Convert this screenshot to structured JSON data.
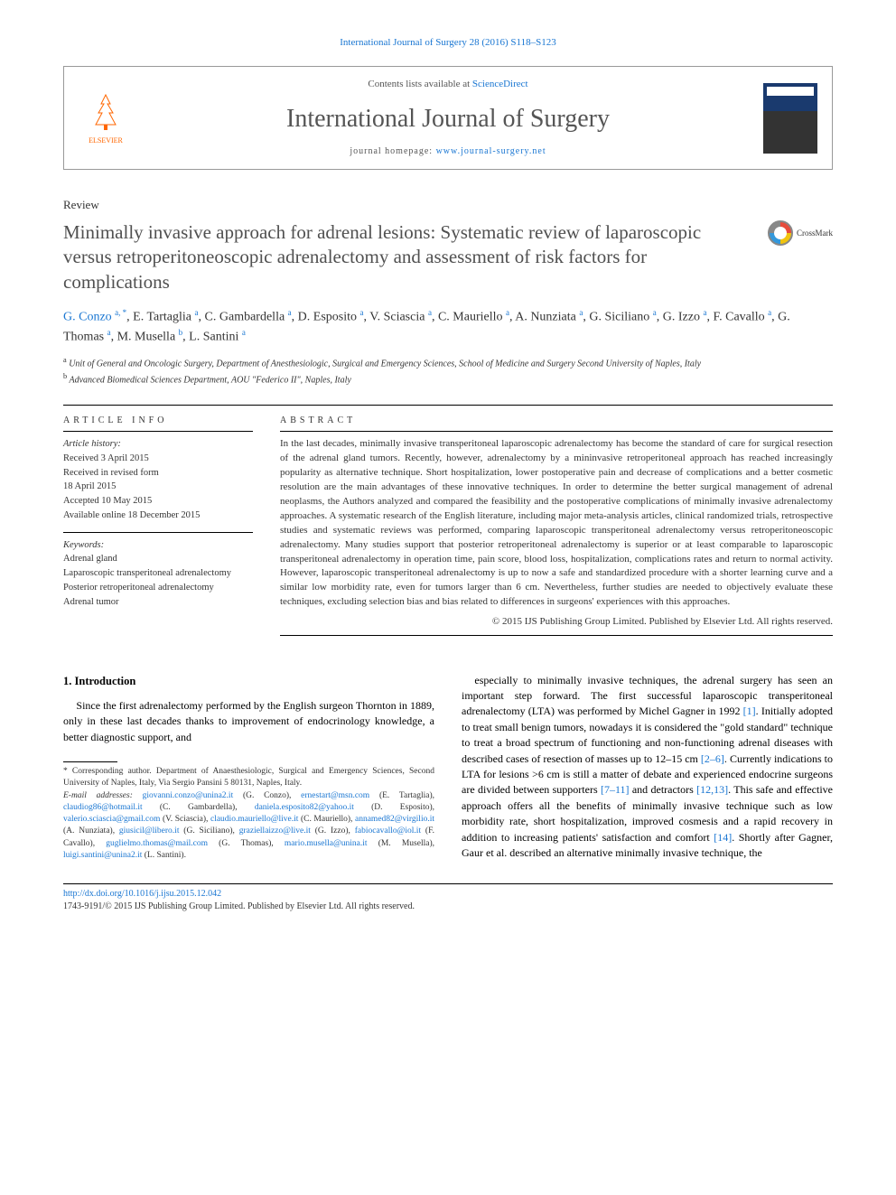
{
  "header": {
    "citation": "International Journal of Surgery 28 (2016) S118–S123",
    "contents_prefix": "Contents lists available at ",
    "contents_link": "ScienceDirect",
    "journal_title": "International Journal of Surgery",
    "homepage_prefix": "journal homepage: ",
    "homepage_link": "www.journal-surgery.net",
    "publisher": "ELSEVIER"
  },
  "article": {
    "type": "Review",
    "title": "Minimally invasive approach for adrenal lesions: Systematic review of laparoscopic versus retroperitoneoscopic adrenalectomy and assessment of risk factors for complications",
    "crossmark_label": "CrossMark"
  },
  "authors_html": "G. Conzo <sup>a, *</sup>, E. Tartaglia <sup>a</sup>, C. Gambardella <sup>a</sup>, D. Esposito <sup>a</sup>, V. Sciascia <sup>a</sup>, C. Mauriello <sup>a</sup>, A. Nunziata <sup>a</sup>, G. Siciliano <sup>a</sup>, G. Izzo <sup>a</sup>, F. Cavallo <sup>a</sup>, G. Thomas <sup>a</sup>, M. Musella <sup>b</sup>, L. Santini <sup>a</sup>",
  "affiliations": {
    "a": "Unit of General and Oncologic Surgery, Department of Anesthesiologic, Surgical and Emergency Sciences, School of Medicine and Surgery Second University of Naples, Italy",
    "b": "Advanced Biomedical Sciences Department, AOU \"Federico II\", Naples, Italy"
  },
  "info": {
    "heading": "ARTICLE INFO",
    "history_label": "Article history:",
    "history": [
      "Received 3 April 2015",
      "Received in revised form",
      "18 April 2015",
      "Accepted 10 May 2015",
      "Available online 18 December 2015"
    ],
    "keywords_label": "Keywords:",
    "keywords": [
      "Adrenal gland",
      "Laparoscopic transperitoneal adrenalectomy",
      "Posterior retroperitoneal adrenalectomy",
      "Adrenal tumor"
    ]
  },
  "abstract": {
    "heading": "ABSTRACT",
    "text": "In the last decades, minimally invasive transperitoneal laparoscopic adrenalectomy has become the standard of care for surgical resection of the adrenal gland tumors. Recently, however, adrenalectomy by a mininvasive retroperitoneal approach has reached increasingly popularity as alternative technique. Short hospitalization, lower postoperative pain and decrease of complications and a better cosmetic resolution are the main advantages of these innovative techniques. In order to determine the better surgical management of adrenal neoplasms, the Authors analyzed and compared the feasibility and the postoperative complications of minimally invasive adrenalectomy approaches. A systematic research of the English literature, including major meta-analysis articles, clinical randomized trials, retrospective studies and systematic reviews was performed, comparing laparoscopic transperitoneal adrenalectomy versus retroperitoneoscopic adrenalectomy. Many studies support that posterior retroperitoneal adrenalectomy is superior or at least comparable to laparoscopic transperitoneal adrenalectomy in operation time, pain score, blood loss, hospitalization, complications rates and return to normal activity. However, laparoscopic transperitoneal adrenalectomy is up to now a safe and standardized procedure with a shorter learning curve and a similar low morbidity rate, even for tumors larger than 6 cm. Nevertheless, further studies are needed to objectively evaluate these techniques, excluding selection bias and bias related to differences in surgeons' experiences with this approaches.",
    "copyright": "© 2015 IJS Publishing Group Limited. Published by Elsevier Ltd. All rights reserved."
  },
  "body": {
    "intro_heading": "1. Introduction",
    "left_para": "Since the first adrenalectomy performed by the English surgeon Thornton in 1889, only in these last decades thanks to improvement of endocrinology knowledge, a better diagnostic support, and",
    "right_para_pre": "especially to minimally invasive techniques, the adrenal surgery has seen an important step forward. The first successful laparoscopic transperitoneal adrenalectomy (LTA) was performed by Michel Gagner in 1992 ",
    "ref1": "[1]",
    "right_para_mid1": ". Initially adopted to treat small benign tumors, nowadays it is considered the \"gold standard\" technique to treat a broad spectrum of functioning and non-functioning adrenal diseases with described cases of resection of masses up to 12–15 cm ",
    "ref2": "[2–6]",
    "right_para_mid2": ". Currently indications to LTA for lesions >6 cm is still a matter of debate and experienced endocrine surgeons are divided between supporters ",
    "ref3": "[7–11]",
    "right_para_mid3": " and detractors ",
    "ref4": "[12,13]",
    "right_para_mid4": ". This safe and effective approach offers all the benefits of minimally invasive technique such as low morbidity rate, short hospitalization, improved cosmesis and a rapid recovery in addition to increasing patients' satisfaction and comfort ",
    "ref5": "[14]",
    "right_para_end": ". Shortly after Gagner, Gaur et al. described an alternative minimally invasive technique, the"
  },
  "footnotes": {
    "corr_label": "* Corresponding author.",
    "corr_text": " Department of Anaesthesiologic, Surgical and Emergency Sciences, Second University of Naples, Italy, Via Sergio Pansini 5 80131, Naples, Italy.",
    "email_label": "E-mail addresses:",
    "emails": [
      {
        "addr": "giovanni.conzo@unina2.it",
        "who": "(G. Conzo)"
      },
      {
        "addr": "ernestart@msn.com",
        "who": "(E. Tartaglia)"
      },
      {
        "addr": "claudiog86@hotmail.it",
        "who": "(C. Gambardella)"
      },
      {
        "addr": "daniela.esposito82@yahoo.it",
        "who": "(D. Esposito)"
      },
      {
        "addr": "valerio.sciascia@gmail.com",
        "who": "(V. Sciascia)"
      },
      {
        "addr": "claudio.mauriello@live.it",
        "who": "(C. Mauriello)"
      },
      {
        "addr": "annamed82@virgilio.it",
        "who": "(A. Nunziata)"
      },
      {
        "addr": "giusicil@libero.it",
        "who": "(G. Siciliano)"
      },
      {
        "addr": "graziellaizzo@live.it",
        "who": "(G. Izzo)"
      },
      {
        "addr": "fabiocavallo@iol.it",
        "who": "(F. Cavallo)"
      },
      {
        "addr": "guglielmo.thomas@mail.com",
        "who": "(G. Thomas)"
      },
      {
        "addr": "mario.musella@unina.it",
        "who": "(M. Musella)"
      },
      {
        "addr": "luigi.santini@unina2.it",
        "who": "(L. Santini)"
      }
    ]
  },
  "footer": {
    "doi": "http://dx.doi.org/10.1016/j.ijsu.2015.12.042",
    "issn_line": "1743-9191/© 2015 IJS Publishing Group Limited. Published by Elsevier Ltd. All rights reserved."
  },
  "colors": {
    "link": "#1976d2",
    "text": "#333333",
    "title_gray": "#505050",
    "elsevier_orange": "#ff6600"
  }
}
